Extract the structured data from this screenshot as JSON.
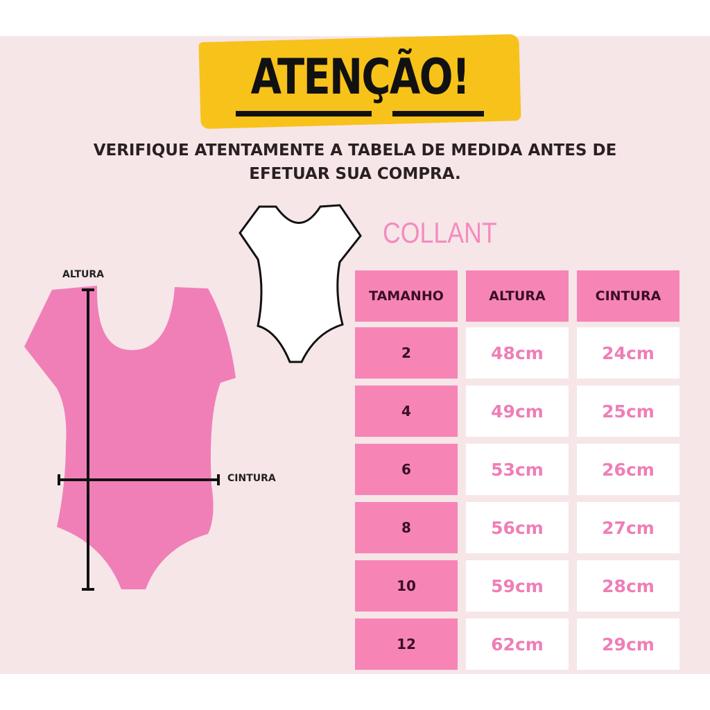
{
  "header": {
    "title": "ATENÇÃO!",
    "subtitle_line1": "VERIFIQUE ATENTAMENTE A TABELA DE MEDIDA ANTES DE",
    "subtitle_line2": "EFETUAR SUA COMPRA."
  },
  "product": {
    "name": "COLLANT"
  },
  "diagram": {
    "height_label": "ALTURA",
    "waist_label": "CINTURA"
  },
  "table": {
    "headers": [
      "TAMANHO",
      "ALTURA",
      "CINTURA"
    ],
    "rows": [
      [
        "2",
        "48cm",
        "24cm"
      ],
      [
        "4",
        "49cm",
        "25cm"
      ],
      [
        "6",
        "53cm",
        "26cm"
      ],
      [
        "8",
        "56cm",
        "27cm"
      ],
      [
        "10",
        "59cm",
        "28cm"
      ],
      [
        "12",
        "62cm",
        "29cm"
      ]
    ]
  },
  "colors": {
    "background": "#f6e6e8",
    "banner": "#f7c21a",
    "pink": "#f685b6",
    "pink_text": "#ee7fb6"
  }
}
